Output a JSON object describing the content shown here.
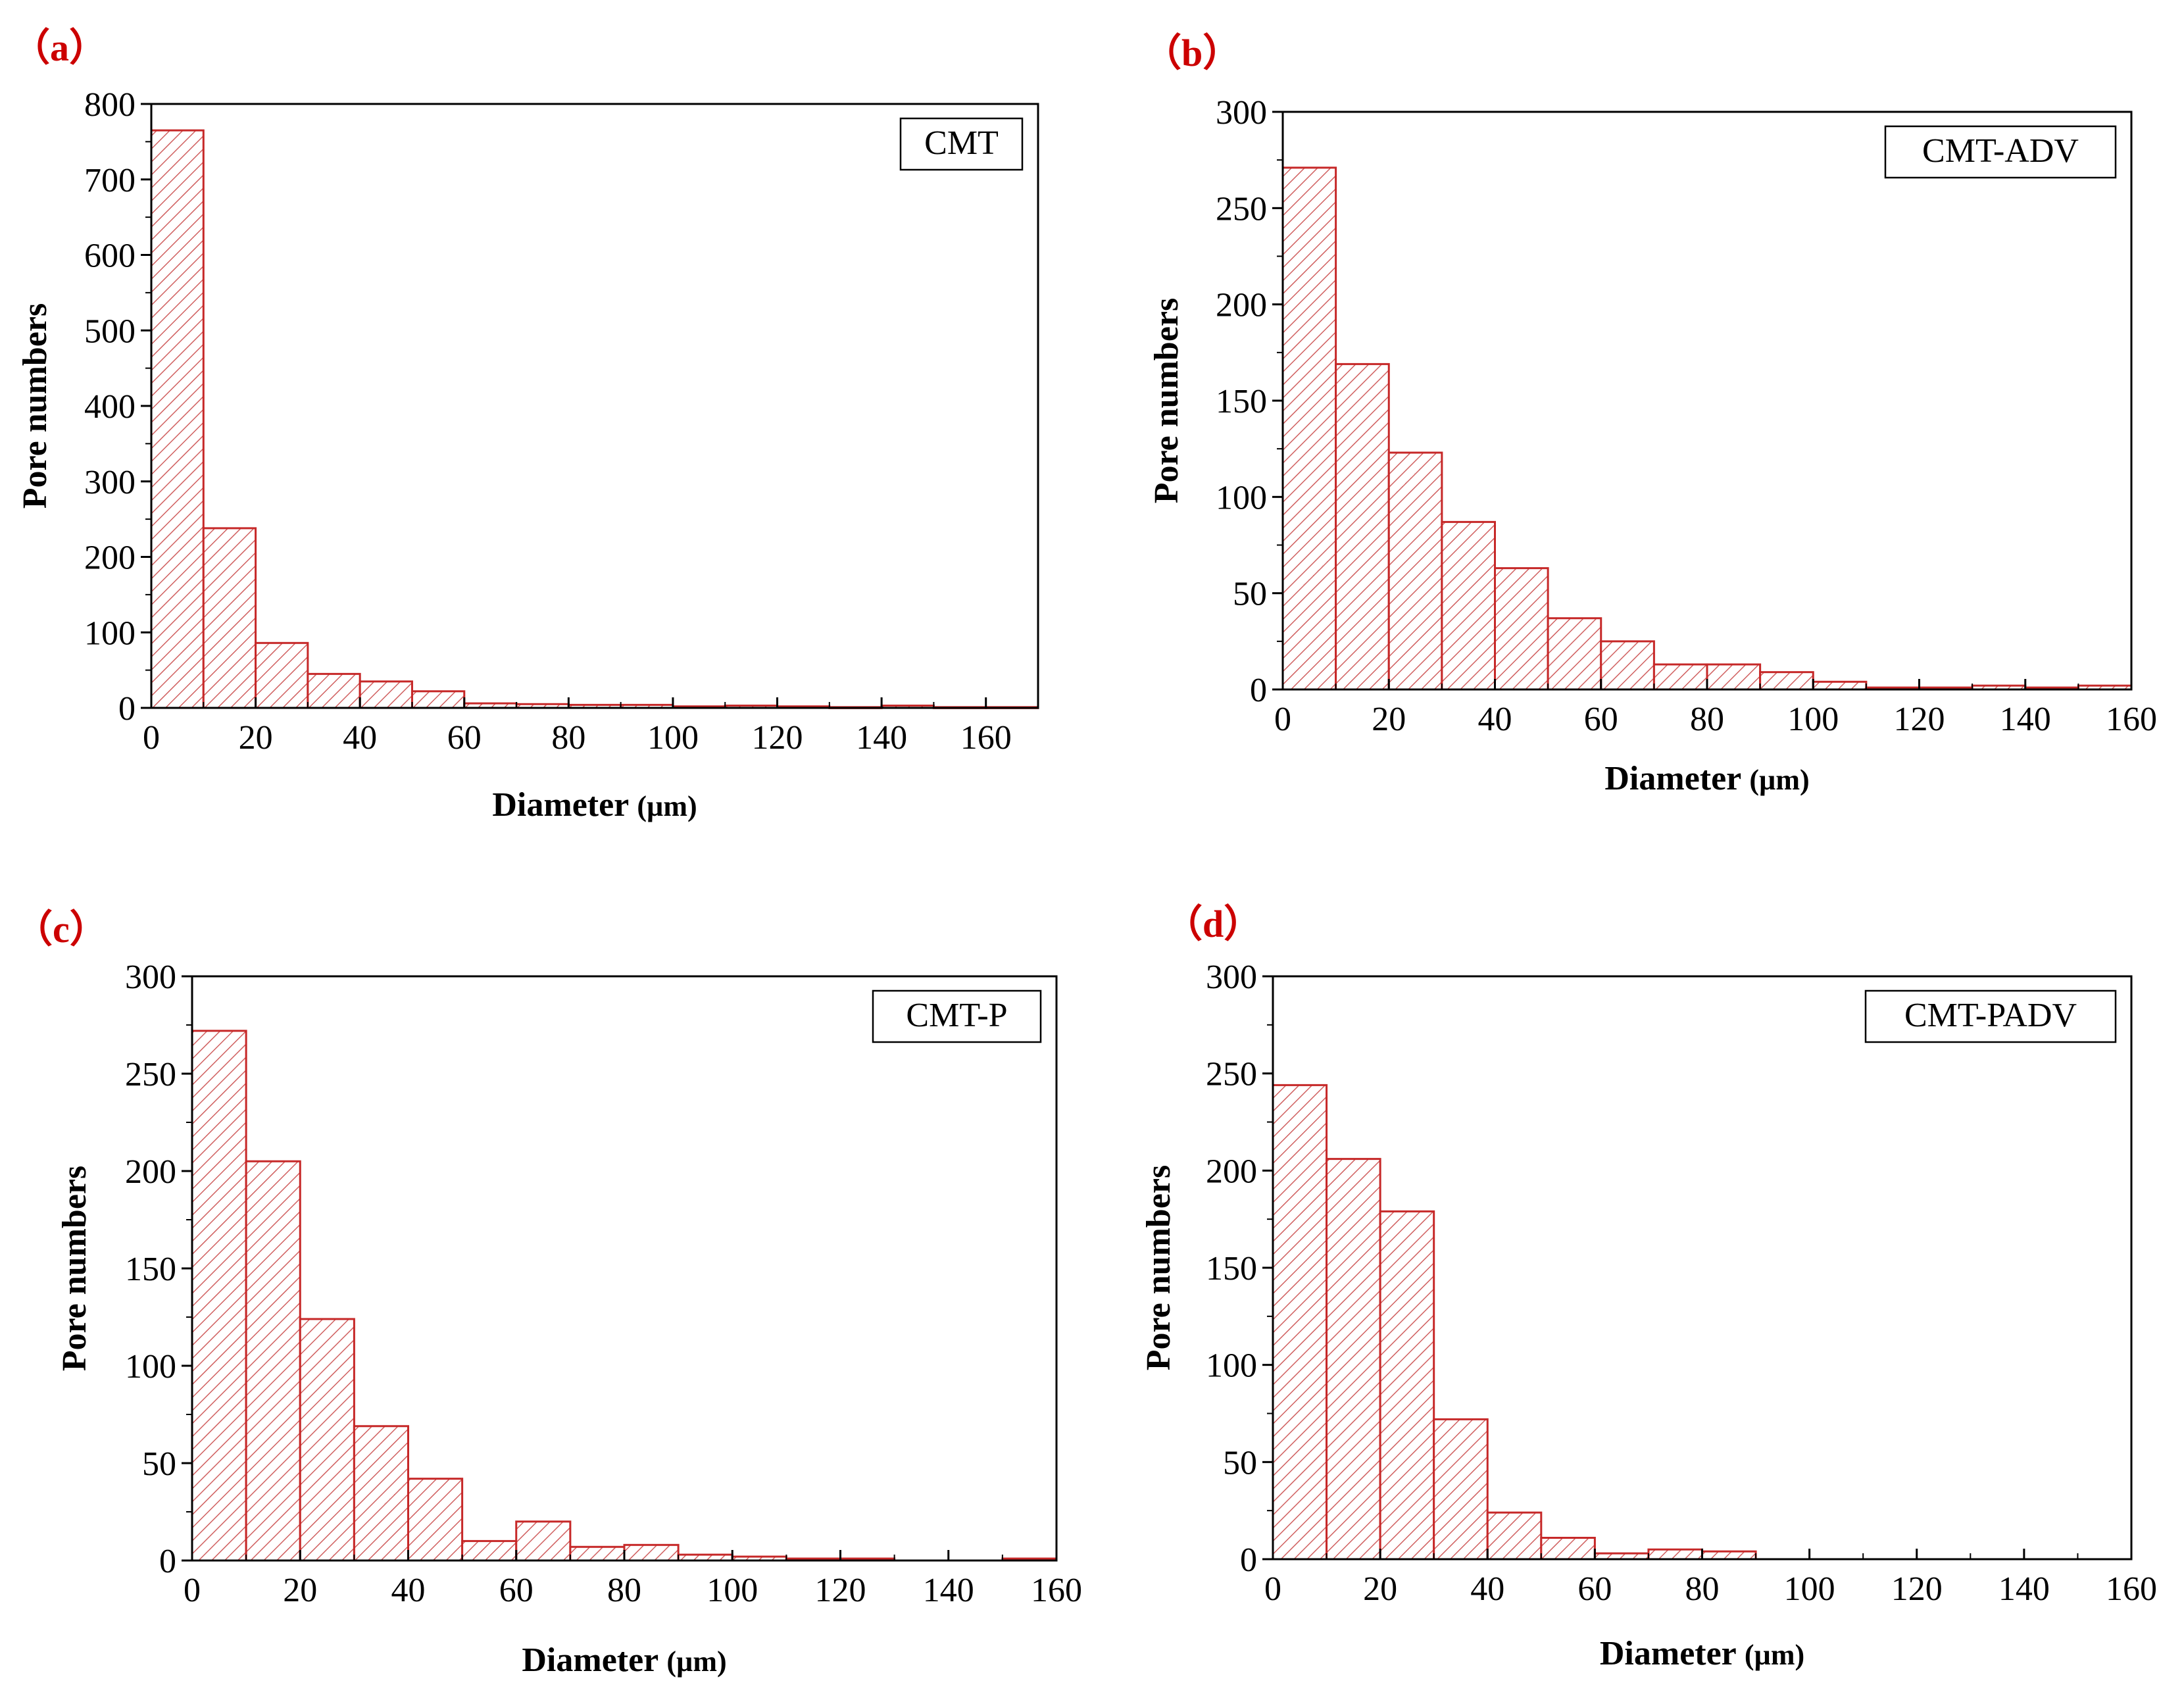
{
  "figure": {
    "bar_fill_color": "#f2c4c4",
    "bar_edge_color": "#c62828",
    "hatch_color": "#d06060",
    "panel_label_color": "#cc0000",
    "axis_color": "#000000"
  },
  "chart_data": [
    {
      "type": "bar",
      "panel_label": "（a）",
      "legend": "CMT",
      "legend_placement": "top-right",
      "xlabel": "Diameter",
      "xlabel_unit": "(µm)",
      "ylabel": "Pore numbers",
      "xlim": [
        0,
        170
      ],
      "ylim": [
        0,
        800
      ],
      "xticks": [
        0,
        20,
        40,
        60,
        80,
        100,
        120,
        140,
        160
      ],
      "yticks": [
        0,
        100,
        200,
        300,
        400,
        500,
        600,
        700,
        800
      ],
      "bin_width": 10,
      "bin_starts": [
        0,
        10,
        20,
        30,
        40,
        50,
        60,
        70,
        80,
        90,
        100,
        110,
        120,
        130,
        140,
        150,
        160
      ],
      "values": [
        765,
        238,
        86,
        45,
        35,
        22,
        6,
        5,
        4,
        4,
        2,
        3,
        2,
        1,
        3,
        1,
        1
      ]
    },
    {
      "type": "bar",
      "panel_label": "（b）",
      "legend": "CMT-ADV",
      "legend_placement": "top-right",
      "xlabel": "Diameter",
      "xlabel_unit": "(µm)",
      "ylabel": "Pore numbers",
      "xlim": [
        0,
        160
      ],
      "ylim": [
        0,
        300
      ],
      "xticks": [
        0,
        20,
        40,
        60,
        80,
        100,
        120,
        140,
        160
      ],
      "yticks": [
        0,
        50,
        100,
        150,
        200,
        250,
        300
      ],
      "bin_width": 10,
      "bin_starts": [
        0,
        10,
        20,
        30,
        40,
        50,
        60,
        70,
        80,
        90,
        100,
        110,
        120,
        130,
        140,
        150
      ],
      "values": [
        271,
        169,
        123,
        87,
        63,
        37,
        25,
        13,
        13,
        9,
        4,
        1,
        1,
        2,
        1,
        2
      ]
    },
    {
      "type": "bar",
      "panel_label": "（c）",
      "legend": "CMT-P",
      "legend_placement": "top-right",
      "xlabel": "Diameter",
      "xlabel_unit": "(µm)",
      "ylabel": "Pore numbers",
      "xlim": [
        0,
        160
      ],
      "ylim": [
        0,
        300
      ],
      "xticks": [
        0,
        20,
        40,
        60,
        80,
        100,
        120,
        140,
        160
      ],
      "yticks": [
        0,
        50,
        100,
        150,
        200,
        250,
        300
      ],
      "bin_width": 10,
      "bin_starts": [
        0,
        10,
        20,
        30,
        40,
        50,
        60,
        70,
        80,
        90,
        100,
        110,
        120,
        130,
        140,
        150
      ],
      "values": [
        272,
        205,
        124,
        69,
        42,
        10,
        20,
        7,
        8,
        3,
        2,
        1,
        1,
        0,
        0,
        1
      ]
    },
    {
      "type": "bar",
      "panel_label": "（d）",
      "legend": "CMT-PADV",
      "legend_placement": "top-right",
      "xlabel": "Diameter",
      "xlabel_unit": "(µm)",
      "ylabel": "Pore numbers",
      "xlim": [
        0,
        160
      ],
      "ylim": [
        0,
        300
      ],
      "xticks": [
        0,
        20,
        40,
        60,
        80,
        100,
        120,
        140,
        160
      ],
      "yticks": [
        0,
        50,
        100,
        150,
        200,
        250,
        300
      ],
      "bin_width": 10,
      "bin_starts": [
        0,
        10,
        20,
        30,
        40,
        50,
        60,
        70,
        80
      ],
      "values": [
        244,
        206,
        179,
        72,
        24,
        11,
        3,
        5,
        4
      ]
    }
  ]
}
